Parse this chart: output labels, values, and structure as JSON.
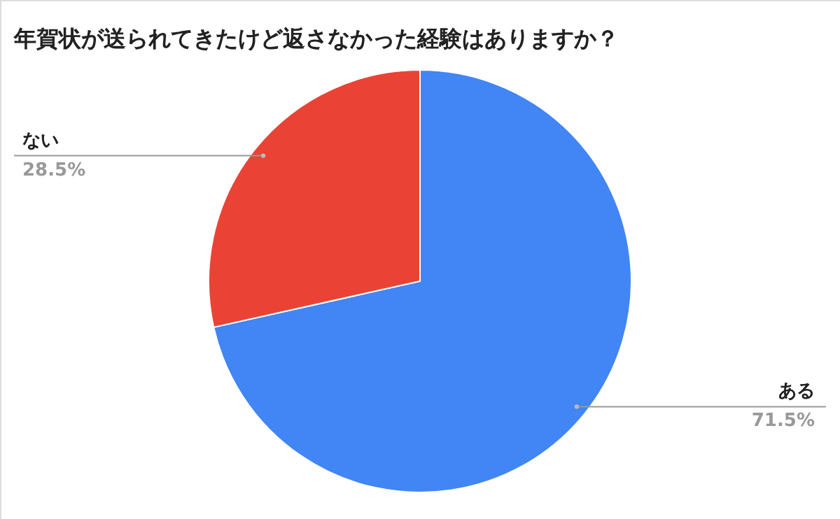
{
  "chart_data": {
    "type": "pie",
    "title": "年賀状が送られてきたけど返さなかった経験はありますか？",
    "categories": [
      "ある",
      "ない"
    ],
    "values": [
      71.5,
      28.5
    ],
    "colors": [
      "#4285f4",
      "#ea4335"
    ],
    "value_labels": [
      "71.5%",
      "28.5%"
    ]
  }
}
